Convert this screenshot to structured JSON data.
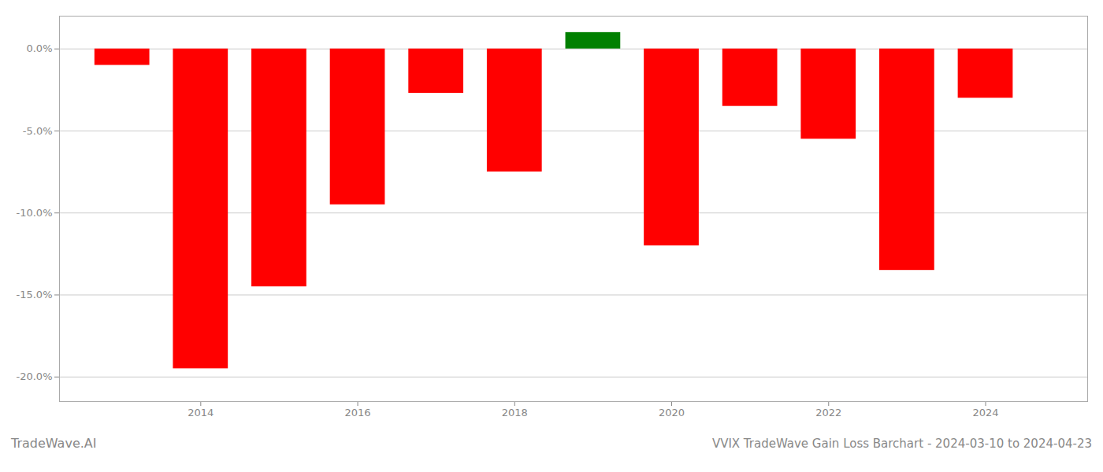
{
  "chart_data": {
    "type": "bar",
    "title": "VVIX TradeWave Gain Loss Barchart - 2024-03-10 to 2024-04-23",
    "annotations": [
      "TradeWave.AI"
    ],
    "x": [
      2013,
      2014,
      2015,
      2016,
      2017,
      2018,
      2019,
      2020,
      2021,
      2022,
      2023,
      2024
    ],
    "values": [
      -1.0,
      -19.5,
      -14.5,
      -9.5,
      -2.7,
      -7.5,
      1.0,
      -12.0,
      -3.5,
      -5.5,
      -13.5,
      -3.0
    ],
    "colors": [
      "red",
      "red",
      "red",
      "red",
      "red",
      "red",
      "green",
      "red",
      "red",
      "red",
      "red",
      "red"
    ],
    "xlim": [
      2012.2,
      2025.3
    ],
    "xticks": [
      2014,
      2016,
      2018,
      2020,
      2022,
      2024
    ],
    "ylim": [
      -21.5,
      2.0
    ],
    "yticks": [
      {
        "value": 0.0,
        "label": "0.0%"
      },
      {
        "value": -5.0,
        "label": "-5.0%"
      },
      {
        "value": -10.0,
        "label": "-10.0%"
      },
      {
        "value": -15.0,
        "label": "-15.0%"
      },
      {
        "value": -20.0,
        "label": "-20.0%"
      }
    ],
    "grid": true
  }
}
